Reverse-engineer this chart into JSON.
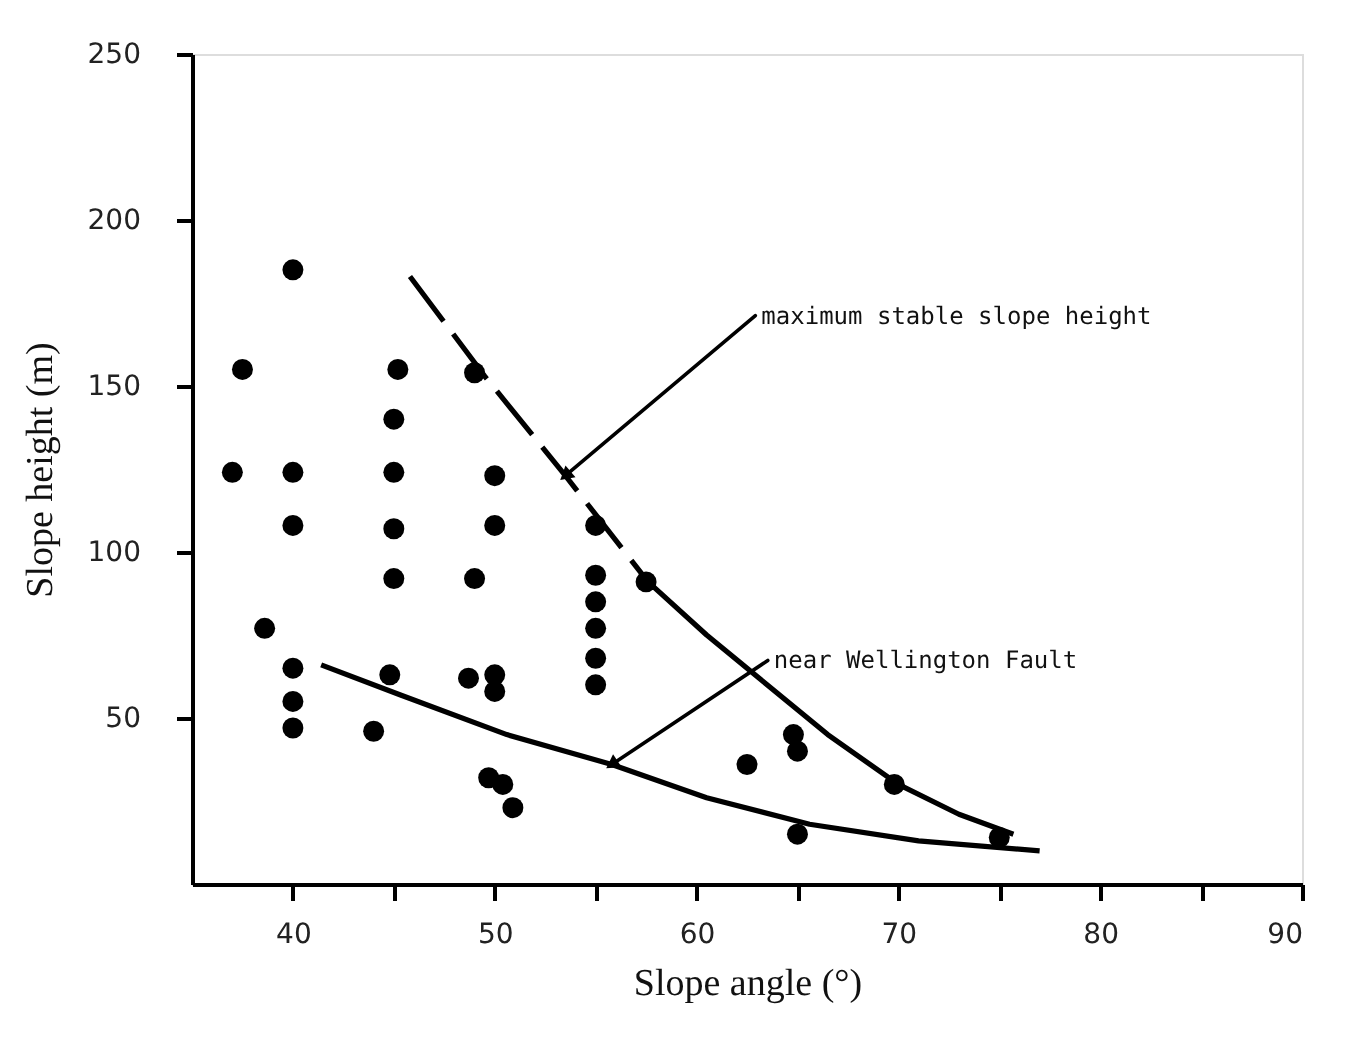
{
  "chart_data": {
    "type": "scatter",
    "xlabel": "Slope angle (°)",
    "ylabel": "Slope height (m)",
    "xlim": [
      35,
      90
    ],
    "ylim": [
      0,
      250
    ],
    "xticks": [
      40,
      {
        "value": 45,
        "label": null
      },
      50,
      {
        "value": 55,
        "label": null
      },
      60,
      {
        "value": 65,
        "label": null
      },
      70,
      {
        "value": 75,
        "label": null
      },
      80,
      {
        "value": 85,
        "label": null
      },
      90
    ],
    "yticks": [
      50,
      100,
      150,
      200,
      250
    ],
    "grid": false,
    "marker": "circle",
    "series": [
      {
        "color": "#000000",
        "x": [
          40,
          37.5,
          45.2,
          49,
          45,
          37,
          40,
          45,
          50,
          40,
          45,
          50,
          55,
          57.5,
          45,
          49,
          55,
          55,
          55,
          55,
          55,
          38.6,
          40,
          40,
          40,
          44,
          44.8,
          48.7,
          50,
          50,
          49.7,
          50.4,
          50.9,
          62.5,
          64.8,
          65,
          65,
          69.8,
          75
        ],
        "values": [
          185,
          155,
          155,
          154,
          140,
          124,
          124,
          124,
          123,
          108,
          107,
          108,
          108,
          91,
          92,
          92,
          93,
          85,
          77,
          68,
          60,
          77,
          65,
          55,
          47,
          46,
          63,
          62,
          63,
          58,
          32,
          30,
          23,
          36,
          45,
          40,
          15,
          30,
          14
        ]
      },
      {
        "type": "line",
        "marker": "none",
        "color": "#000000",
        "line_style": "dashed",
        "x": [
          45.8,
          49.5,
          53.5,
          57.6
        ],
        "values": [
          183,
          153,
          123,
          91
        ]
      },
      {
        "type": "line",
        "marker": "none",
        "color": "#000000",
        "line_style": "solid",
        "x": [
          57.6,
          60.5,
          63.3,
          66.5,
          70,
          73,
          75.7
        ],
        "values": [
          91,
          75,
          61,
          45,
          30,
          21,
          15
        ]
      },
      {
        "type": "line",
        "marker": "none",
        "color": "#000000",
        "line_style": "solid",
        "x": [
          41.4,
          45.3,
          50.6,
          55.8,
          60.5,
          65.6,
          71,
          77
        ],
        "values": [
          66,
          57,
          45,
          36,
          26,
          18,
          13,
          10
        ]
      }
    ],
    "annotations": [
      {
        "text": "maximum stable slope height",
        "x": 53.5,
        "y": 123
      },
      {
        "text": "near Wellington Fault",
        "x": 55.8,
        "y": 36
      }
    ]
  }
}
